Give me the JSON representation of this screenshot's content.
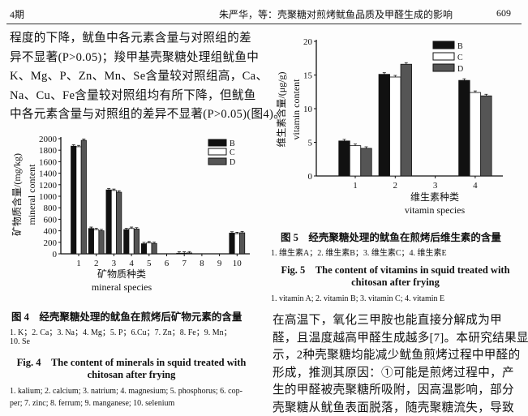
{
  "header": {
    "issue": "4期",
    "running_title": "朱严华，等：壳聚糖对煎烤鱿鱼品质及甲醛生成的影响",
    "page_number": "609"
  },
  "left_paragraph": [
    "程度的下降，鱿鱼中各元素含量与对照组的差",
    "异不显著(P>0.05)；羧甲基壳聚糖处理组鱿鱼中",
    "K、Mg、P、Zn、Mn、Se含量较对照组高，Ca、",
    "Na、Cu、Fe含量较对照组均有所下降，但鱿鱼",
    "中各元素含量与对照组的差异不显著(P>0.05)(图4)。"
  ],
  "fig4": {
    "caption_cn": "图 4　经壳聚糖处理的鱿鱼在煎烤后矿物元素的含量",
    "note_cn": [
      "1. K；2. Ca；3. Na；4. Mg；5. P；6.Cu；7. Zn；8. Fe；9. Mn；",
      "10. Se"
    ],
    "caption_en": [
      "Fig. 4　The content of minerals in squid treated with",
      "chitosan after frying"
    ],
    "note_en": [
      "1. kalium; 2. calcium; 3. natrium; 4. magnesium; 5. phosphorus; 6. cop-",
      "per; 7. zinc; 8. ferrum; 9. manganese; 10. selenium"
    ]
  },
  "fig5": {
    "caption_cn": "图 5　经壳聚糖处理的鱿鱼在煎烤后维生素的含量",
    "note_cn": "1. 维生素A；2. 维生素B；3. 维生素C；4. 维生素E",
    "caption_en": [
      "Fig. 5　The content of vitamins in squid treated with",
      "chitosan after frying"
    ],
    "note_en": "1. vitamin A; 2. vitamin B; 3. vitamin C; 4. vitamin E"
  },
  "right_paragraph": [
    "在高温下，氧化三甲胺也能直接分解成为甲",
    "醛，且温度越高甲醛生成越多[7]。本研究结果显",
    "示，2种壳聚糖均能减少鱿鱼煎烤过程中甲醛的",
    "形成，推测其原因：①可能是煎烤过程中，产",
    "生的甲醛被壳聚糖所吸附，因高温影响，部分",
    "壳聚糖从鱿鱼表面脱落，随壳聚糖流失，导致"
  ],
  "chart_data": [
    {
      "type": "bar",
      "categories": [
        "1",
        "2",
        "3",
        "4",
        "5",
        "6",
        "7",
        "8",
        "9",
        "10"
      ],
      "series": [
        {
          "name": "B",
          "values": [
            1870,
            440,
            1110,
            420,
            175,
            0,
            10,
            0,
            0,
            360
          ],
          "fill": "#111111"
        },
        {
          "name": "C",
          "values": [
            1860,
            420,
            1100,
            440,
            190,
            0,
            10,
            0,
            0,
            350
          ],
          "fill": "#ffffff"
        },
        {
          "name": "D",
          "values": [
            1970,
            400,
            1070,
            430,
            180,
            0,
            15,
            0,
            0,
            365
          ],
          "fill": "#555555"
        }
      ],
      "xlabel": [
        "矿物质种类",
        "mineral species"
      ],
      "ylabel": [
        "矿物质含量/(mg/kg)",
        "mineral content"
      ],
      "ylim": [
        0,
        2000
      ],
      "yticks": [
        0,
        200,
        400,
        600,
        800,
        1000,
        1200,
        1400,
        1600,
        1800,
        2000
      ],
      "error_bars": true,
      "grid": false,
      "legend": "top-right"
    },
    {
      "type": "bar",
      "categories": [
        "1",
        "2",
        "3",
        "4"
      ],
      "series": [
        {
          "name": "B",
          "values": [
            5.2,
            15.1,
            0,
            14.2
          ],
          "fill": "#111111"
        },
        {
          "name": "C",
          "values": [
            4.5,
            14.7,
            0,
            12.4
          ],
          "fill": "#ffffff"
        },
        {
          "name": "D",
          "values": [
            4.1,
            16.6,
            0,
            11.9
          ],
          "fill": "#555555"
        }
      ],
      "xlabel": [
        "维生素种类",
        "vitamin species"
      ],
      "ylabel": [
        "维生素含量/(μg/g)",
        "vitamin content"
      ],
      "ylim": [
        0,
        20
      ],
      "yticks": [
        0,
        5,
        10,
        15,
        20
      ],
      "error_bars": true,
      "grid": false,
      "legend": "top-right"
    }
  ]
}
